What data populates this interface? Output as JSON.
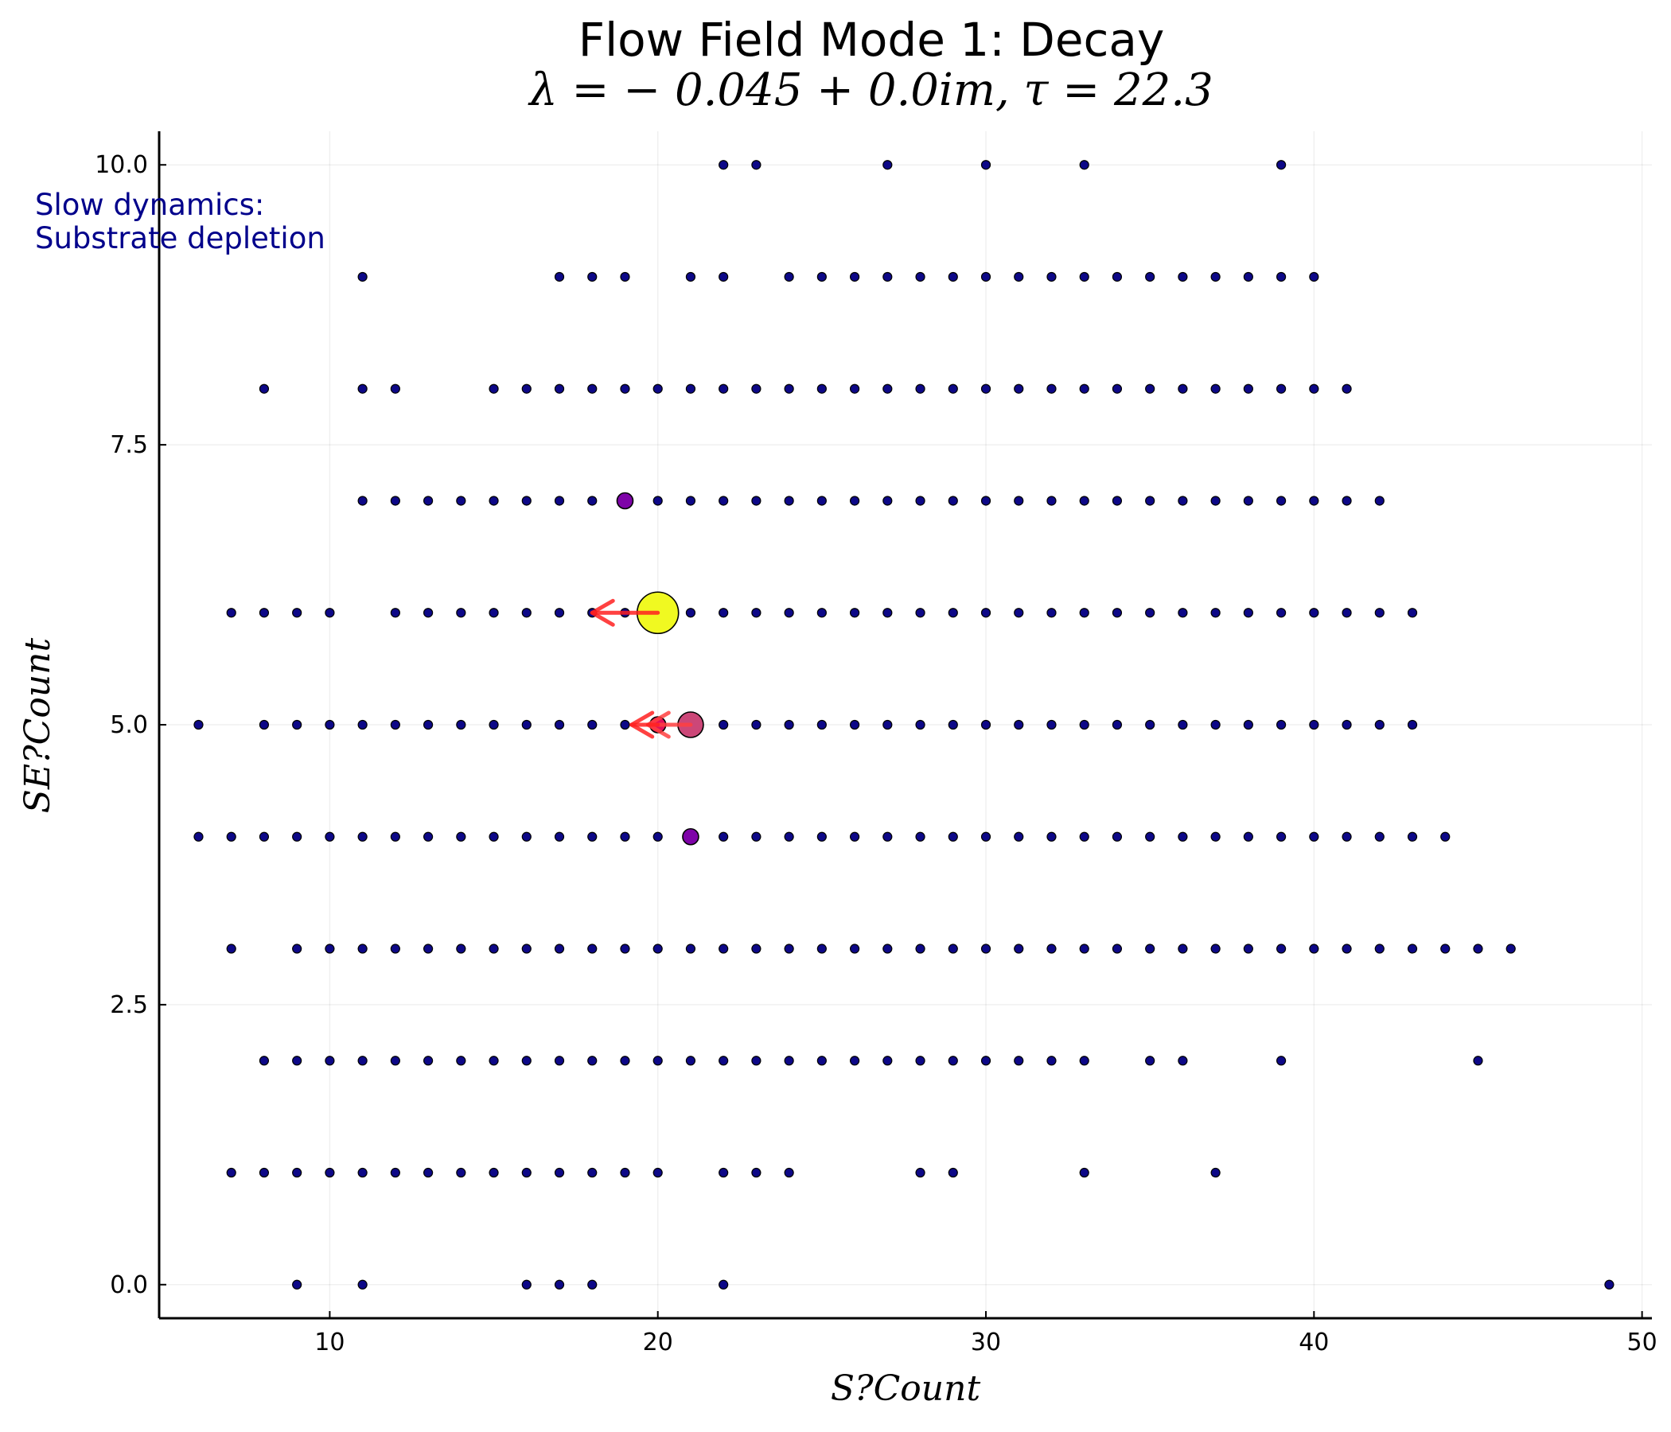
{
  "chart_data": {
    "type": "scatter",
    "title": "Flow Field Mode 1: Decay",
    "subtitle": "λ = − 0.045 + 0.0im, τ = 22.3",
    "xlabel": "S?Count",
    "ylabel": "SE?Count",
    "xlim": [
      4.8,
      50.3
    ],
    "ylim": [
      -0.3,
      10.3
    ],
    "xticks": [
      10,
      20,
      30,
      40,
      50
    ],
    "xtick_labels": [
      "10",
      "20",
      "30",
      "40",
      "50"
    ],
    "yticks": [
      0,
      2.5,
      5,
      7.5,
      10
    ],
    "ytick_labels": [
      "0.0",
      "2.5",
      "5.0",
      "7.5",
      "10.0"
    ],
    "grid": true,
    "legend": "none",
    "annotation": [
      "Slow dynamics:",
      "Substrate depletion"
    ],
    "annotation_color": "#00008b",
    "point_color": "#0d0887",
    "points_by_row": [
      {
        "y": 10,
        "x": [
          22,
          23,
          27,
          30,
          33,
          39
        ]
      },
      {
        "y": 9,
        "x": [
          11,
          17,
          18,
          19,
          21,
          22,
          24,
          25,
          26,
          27,
          28,
          29,
          30,
          31,
          32,
          33,
          34,
          35,
          36,
          37,
          38,
          39,
          40
        ]
      },
      {
        "y": 8,
        "x": [
          8,
          11,
          12,
          15,
          16,
          17,
          18,
          19,
          20,
          21,
          22,
          23,
          24,
          25,
          26,
          27,
          28,
          29,
          30,
          31,
          32,
          33,
          34,
          35,
          36,
          37,
          38,
          39,
          40,
          41
        ]
      },
      {
        "y": 7,
        "x": [
          11,
          12,
          13,
          14,
          15,
          16,
          17,
          18,
          20,
          21,
          22,
          23,
          24,
          25,
          26,
          27,
          28,
          29,
          30,
          31,
          32,
          33,
          34,
          35,
          36,
          37,
          38,
          39,
          40,
          41,
          42
        ]
      },
      {
        "y": 6,
        "x": [
          7,
          8,
          9,
          10,
          12,
          13,
          14,
          15,
          16,
          17,
          18,
          19,
          21,
          22,
          23,
          24,
          25,
          26,
          27,
          28,
          29,
          30,
          31,
          32,
          33,
          34,
          35,
          36,
          37,
          38,
          39,
          40,
          41,
          42,
          43
        ]
      },
      {
        "y": 5,
        "x": [
          6,
          8,
          9,
          10,
          11,
          12,
          13,
          14,
          15,
          16,
          17,
          18,
          19,
          22,
          23,
          24,
          25,
          26,
          27,
          28,
          29,
          30,
          31,
          32,
          33,
          34,
          35,
          36,
          37,
          38,
          39,
          40,
          41,
          42,
          43
        ]
      },
      {
        "y": 4,
        "x": [
          6,
          7,
          8,
          9,
          10,
          11,
          12,
          13,
          14,
          15,
          16,
          17,
          18,
          19,
          20,
          22,
          23,
          24,
          25,
          26,
          27,
          28,
          29,
          30,
          31,
          32,
          33,
          34,
          35,
          36,
          37,
          38,
          39,
          40,
          41,
          42,
          43,
          44
        ]
      },
      {
        "y": 3,
        "x": [
          7,
          9,
          10,
          11,
          12,
          13,
          14,
          15,
          16,
          17,
          18,
          19,
          20,
          21,
          22,
          23,
          24,
          25,
          26,
          27,
          28,
          29,
          30,
          31,
          32,
          33,
          34,
          35,
          36,
          37,
          38,
          39,
          40,
          41,
          42,
          43,
          44,
          45,
          46
        ]
      },
      {
        "y": 2,
        "x": [
          8,
          9,
          10,
          11,
          12,
          13,
          14,
          15,
          16,
          17,
          18,
          19,
          20,
          21,
          22,
          23,
          24,
          25,
          26,
          27,
          28,
          29,
          30,
          31,
          32,
          33,
          35,
          36,
          39,
          45
        ]
      },
      {
        "y": 1,
        "x": [
          7,
          8,
          9,
          10,
          11,
          12,
          13,
          14,
          15,
          16,
          17,
          18,
          19,
          20,
          22,
          23,
          24,
          28,
          29,
          33,
          37
        ]
      },
      {
        "y": 0,
        "x": [
          9,
          11,
          16,
          17,
          18,
          22,
          49
        ]
      }
    ],
    "highlighted_points": [
      {
        "x": 20,
        "y": 6,
        "color": "#f0f921",
        "size": "large"
      },
      {
        "x": 21,
        "y": 5,
        "color": "#cc4778",
        "size": "medium"
      },
      {
        "x": 20,
        "y": 5,
        "color": "#e0105a",
        "size": "small"
      },
      {
        "x": 19,
        "y": 7,
        "color": "#7e03a8",
        "size": "small"
      },
      {
        "x": 21,
        "y": 4,
        "color": "#7e03a8",
        "size": "small"
      }
    ],
    "arrows": [
      {
        "from": [
          20,
          6
        ],
        "to": [
          18,
          6
        ],
        "color": "#ff2020"
      },
      {
        "from": [
          21,
          5
        ],
        "to": [
          19.7,
          5
        ],
        "color": "#ff4040"
      },
      {
        "from": [
          20,
          5
        ],
        "to": [
          19.2,
          5
        ],
        "color": "#ff2020"
      }
    ]
  }
}
